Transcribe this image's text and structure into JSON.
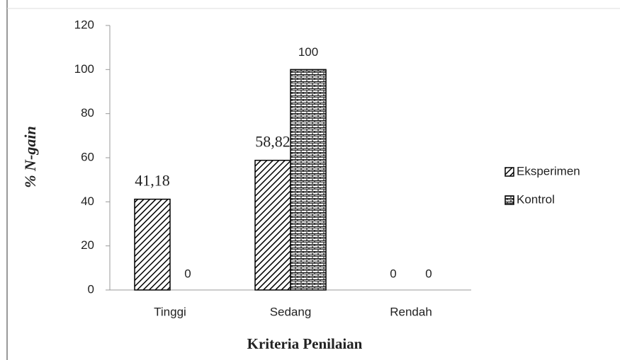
{
  "chart_data": {
    "type": "bar",
    "x_label": "Kriteria Penilaian",
    "y_label": "% N-gain",
    "categories": [
      "Tinggi",
      "Sedang",
      "Rendah"
    ],
    "series": [
      {
        "name": "Eksperimen",
        "color": "#000000",
        "values": [
          41.18,
          58.82,
          0
        ],
        "value_labels": [
          "41,18",
          "58,82",
          "0"
        ]
      },
      {
        "name": "Kontrol",
        "color": "#000000",
        "values": [
          0,
          100,
          0
        ]
      }
    ],
    "ylim": [
      0,
      120
    ],
    "yticks": [
      0,
      20,
      40,
      60,
      80,
      100,
      120
    ],
    "grid": false,
    "legend": "right"
  }
}
